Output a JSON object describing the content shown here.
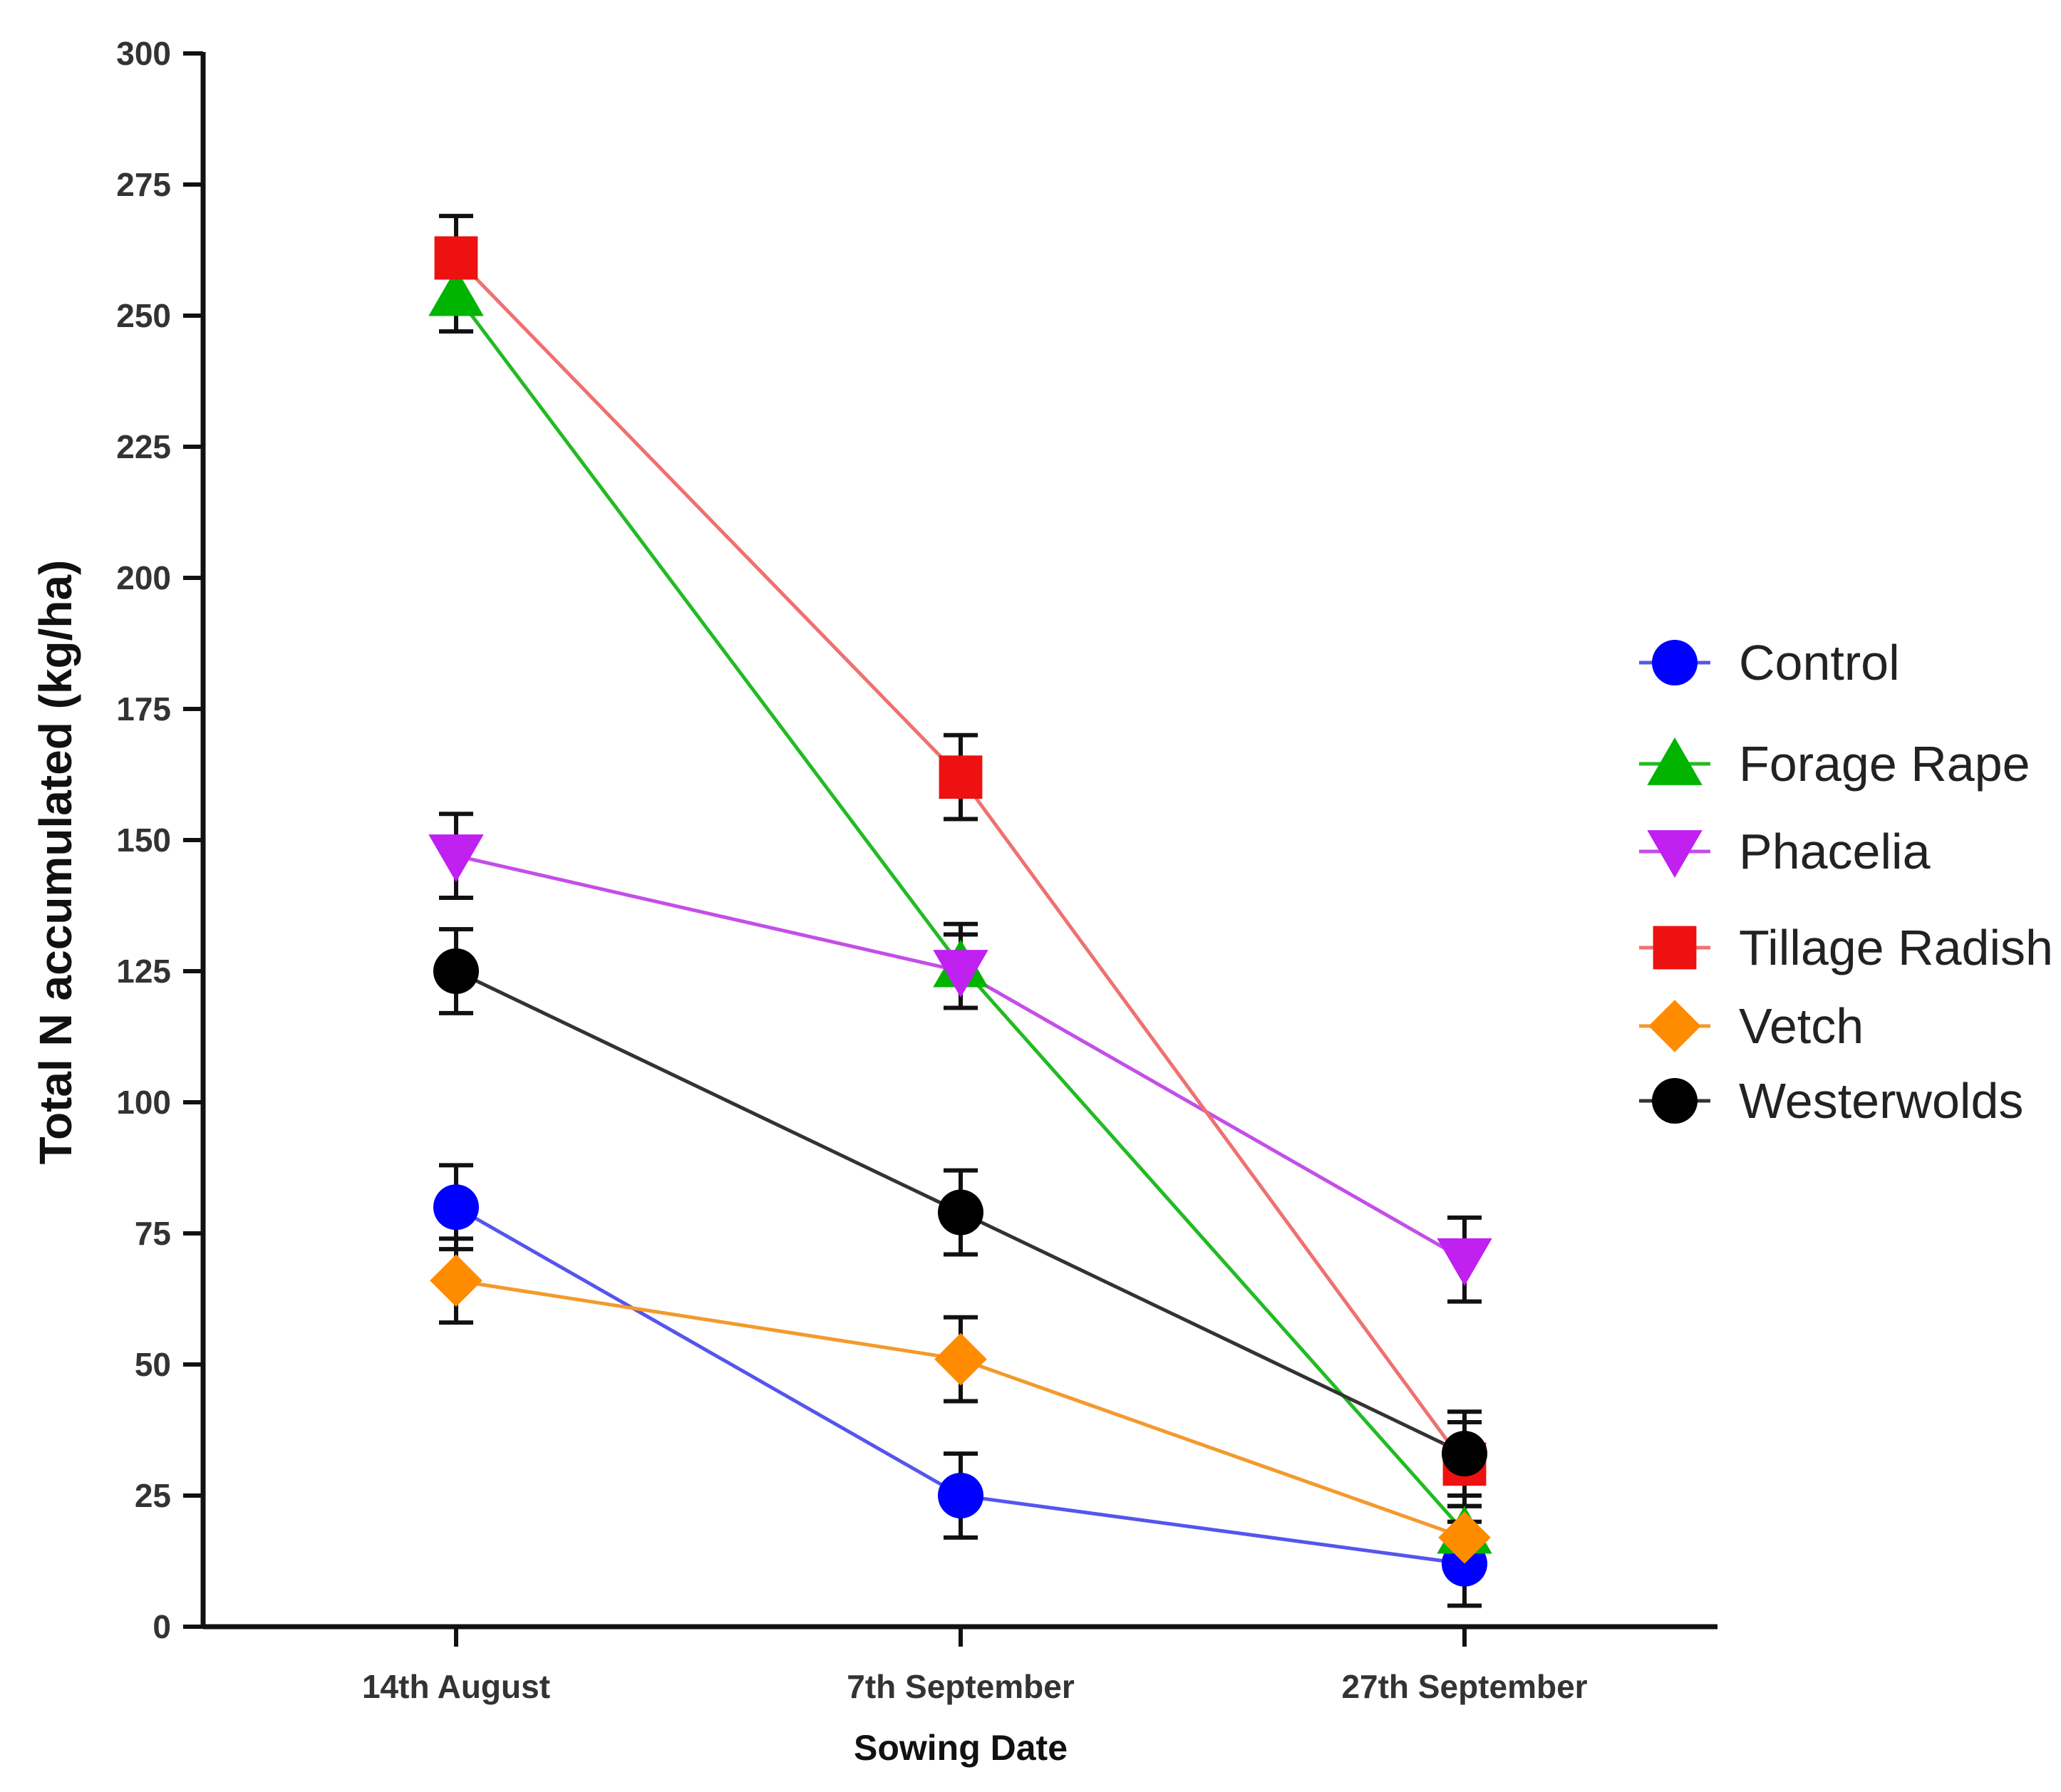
{
  "chart_data": {
    "type": "line",
    "title": "",
    "xlabel": "Sowing Date",
    "ylabel": "Total N accumulated (kg/ha)",
    "ylim": [
      0,
      300
    ],
    "yticks": [
      "0",
      "25",
      "50",
      "75",
      "100",
      "125",
      "150",
      "175",
      "200",
      "225",
      "250",
      "275",
      "300"
    ],
    "categories": [
      "14th August",
      "7th September",
      "27th September"
    ],
    "grid": false,
    "legend_position": "right",
    "series": [
      {
        "name": "Control",
        "color": "#0000ff",
        "line_color": "#5555ee",
        "marker": "circle",
        "values": [
          80,
          25,
          12
        ],
        "errors": [
          8,
          8,
          8
        ]
      },
      {
        "name": "Forage Rape",
        "color": "#00b400",
        "line_color": "#22bb22",
        "marker": "triangle-up",
        "values": [
          254,
          126,
          18
        ],
        "errors": [
          7,
          8,
          7
        ]
      },
      {
        "name": "Phacelia",
        "color": "#c020f0",
        "line_color": "#c44ee8",
        "marker": "triangle-down",
        "values": [
          147,
          125,
          70
        ],
        "errors": [
          8,
          7,
          8
        ]
      },
      {
        "name": "Tillage Radish",
        "color": "#ee1111",
        "line_color": "#f07070",
        "marker": "square",
        "values": [
          261,
          162,
          31
        ],
        "errors": [
          8,
          8,
          8
        ]
      },
      {
        "name": "Vetch",
        "color": "#ff8c00",
        "line_color": "#f39a2c",
        "marker": "diamond",
        "values": [
          66,
          51,
          17
        ],
        "errors": [
          8,
          8,
          6
        ]
      },
      {
        "name": "Westerwolds",
        "color": "#000000",
        "line_color": "#333333",
        "marker": "circle",
        "values": [
          125,
          79,
          33
        ],
        "errors": [
          8,
          8,
          8
        ]
      }
    ]
  }
}
